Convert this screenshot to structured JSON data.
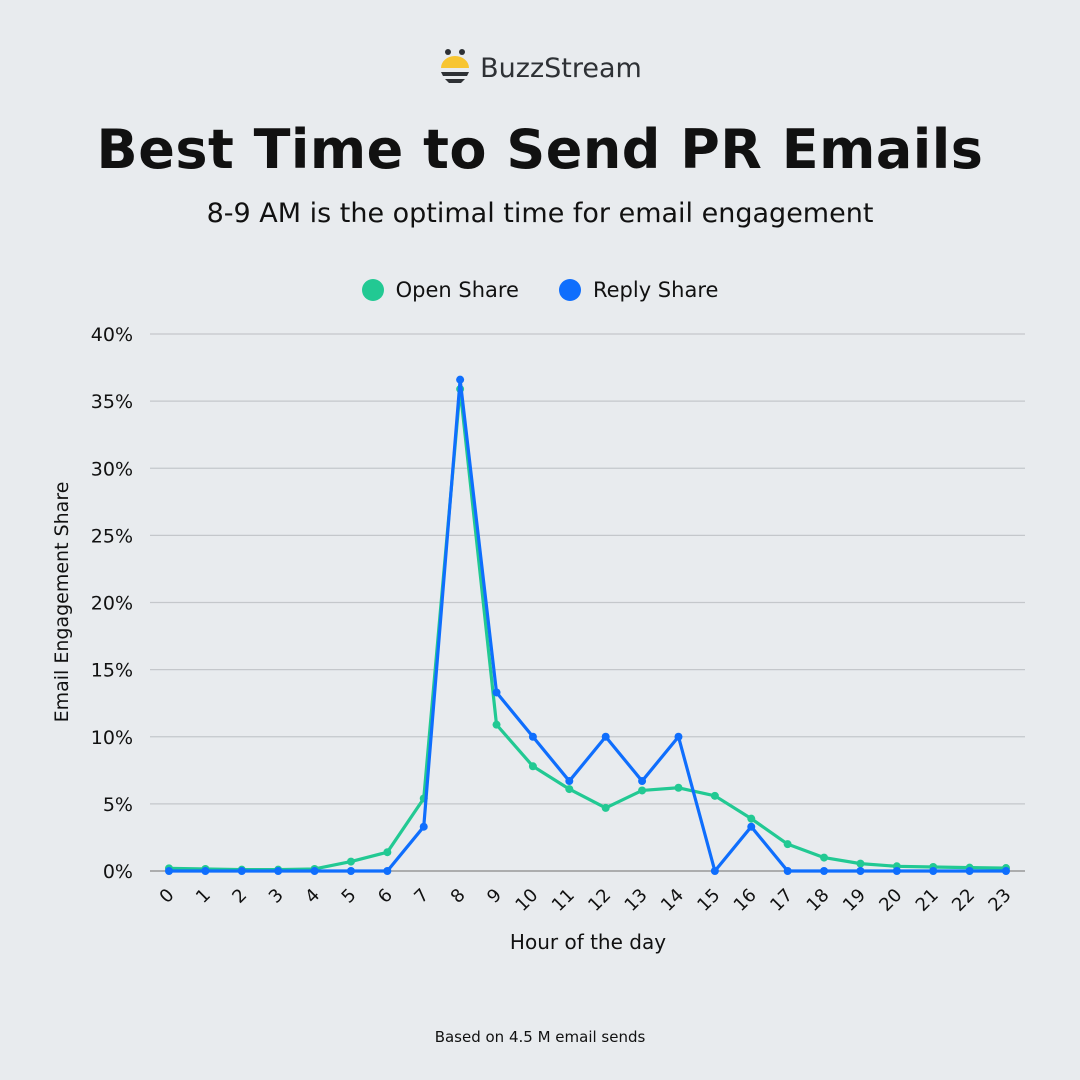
{
  "brand": {
    "name": "BuzzStream",
    "logo_icon": "bee-icon",
    "logo_color": "#f7c531"
  },
  "header": {
    "title": "Best Time to Send PR Emails",
    "subtitle": "8-9 AM is the optimal time for email engagement"
  },
  "footnote": "Based on 4.5 M email sends",
  "chart_data": {
    "type": "line",
    "xlabel": "Hour of the day",
    "ylabel": "Email Engagement Share",
    "x": [
      0,
      1,
      2,
      3,
      4,
      5,
      6,
      7,
      8,
      9,
      10,
      11,
      12,
      13,
      14,
      15,
      16,
      17,
      18,
      19,
      20,
      21,
      22,
      23
    ],
    "x_tick_labels": [
      "0",
      "1",
      "2",
      "3",
      "4",
      "5",
      "6",
      "7",
      "8",
      "9",
      "10",
      "11",
      "12",
      "13",
      "14",
      "15",
      "16",
      "17",
      "18",
      "19",
      "20",
      "21",
      "22",
      "23"
    ],
    "ylim": [
      0,
      40
    ],
    "y_ticks": [
      0,
      5,
      10,
      15,
      20,
      25,
      30,
      35,
      40
    ],
    "y_tick_labels": [
      "0%",
      "5%",
      "10%",
      "15%",
      "20%",
      "25%",
      "30%",
      "35%",
      "40%"
    ],
    "grid": true,
    "legend_placement": "top-center",
    "series": [
      {
        "name": "Open Share",
        "color": "#22c993",
        "values": [
          0.2,
          0.15,
          0.1,
          0.1,
          0.15,
          0.7,
          1.4,
          5.4,
          35.9,
          10.9,
          7.8,
          6.1,
          4.7,
          6.0,
          6.2,
          5.6,
          3.9,
          2.0,
          1.0,
          0.55,
          0.35,
          0.3,
          0.25,
          0.22
        ]
      },
      {
        "name": "Reply Share",
        "color": "#0f6efd",
        "values": [
          0,
          0,
          0,
          0,
          0,
          0,
          0,
          3.3,
          36.6,
          13.3,
          10.0,
          6.7,
          10.0,
          6.7,
          10.0,
          0,
          3.3,
          0,
          0,
          0,
          0,
          0,
          0,
          0
        ]
      }
    ]
  }
}
